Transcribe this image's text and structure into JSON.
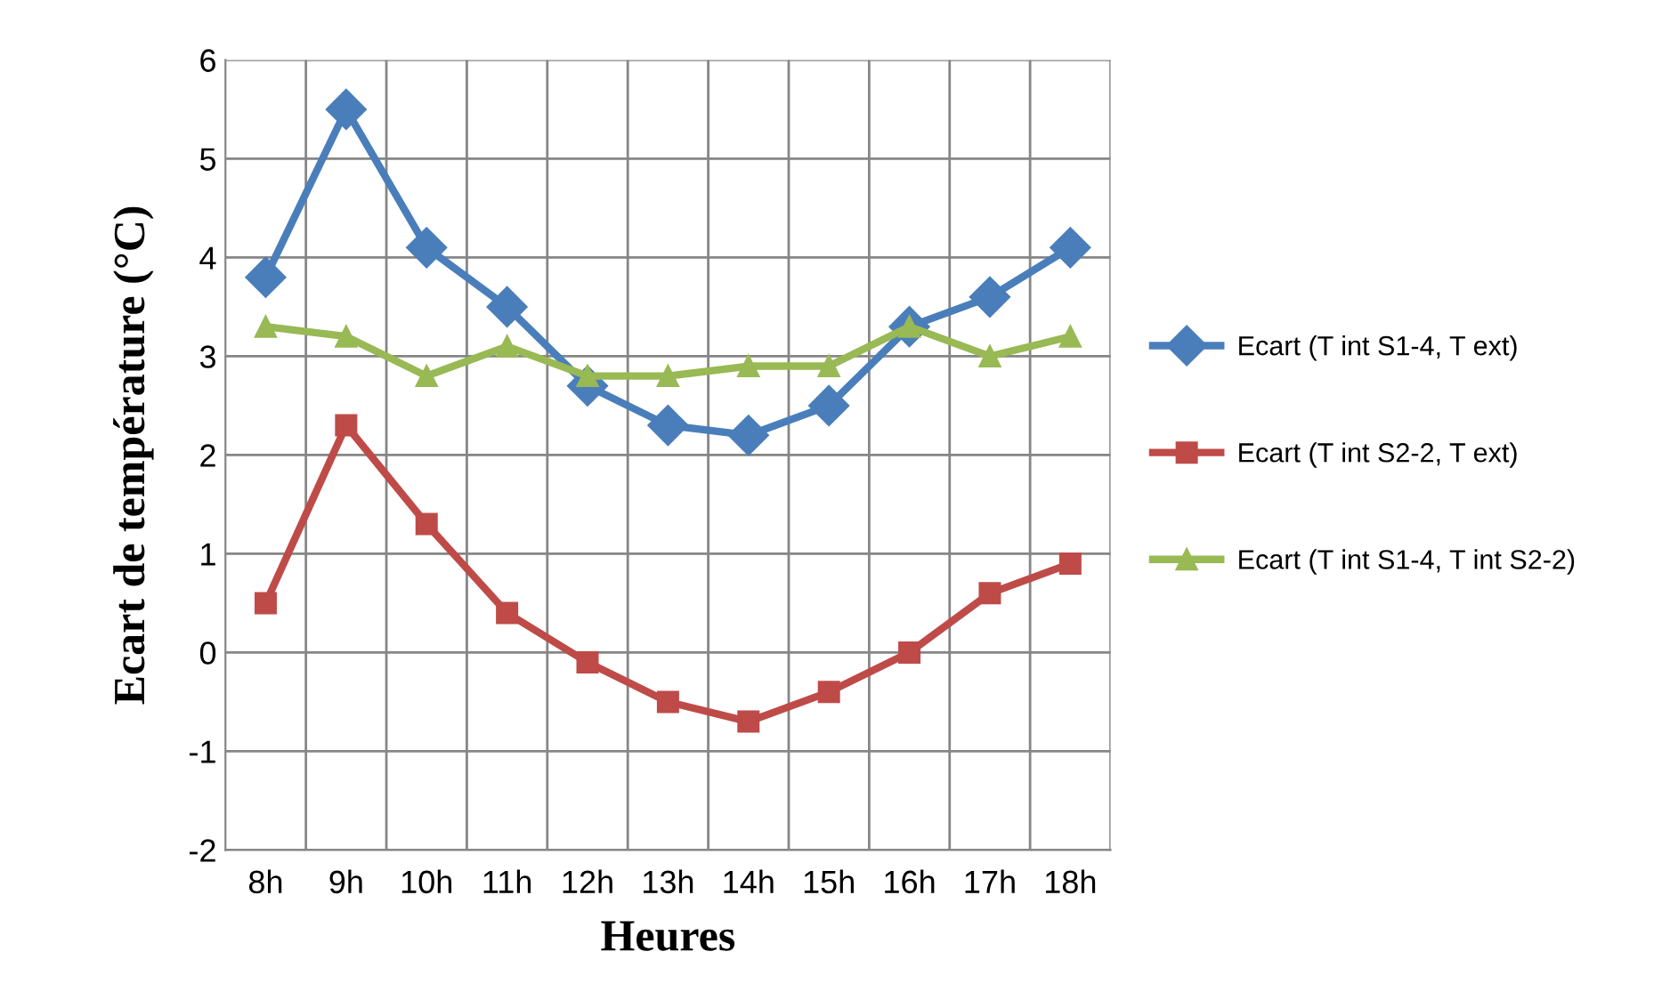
{
  "chart_data": {
    "type": "line",
    "xlabel": "Heures",
    "ylabel": "Ecart de température (°C)",
    "categories": [
      "8h",
      "9h",
      "10h",
      "11h",
      "12h",
      "13h",
      "14h",
      "15h",
      "16h",
      "17h",
      "18h"
    ],
    "series": [
      {
        "name": "Ecart (T int S1-4, T ext)",
        "color": "#4a7ebb",
        "marker": "diamond",
        "values": [
          3.8,
          5.5,
          4.1,
          3.5,
          2.7,
          2.3,
          2.2,
          2.5,
          3.3,
          3.6,
          4.1
        ]
      },
      {
        "name": "Ecart (T int S2-2, T ext)",
        "color": "#be4b48",
        "marker": "square",
        "values": [
          0.5,
          2.3,
          1.3,
          0.4,
          -0.1,
          -0.5,
          -0.7,
          -0.4,
          0.0,
          0.6,
          0.9
        ]
      },
      {
        "name": "Ecart (T int S1-4, T int S2-2)",
        "color": "#98b954",
        "marker": "triangle",
        "values": [
          3.3,
          3.2,
          2.8,
          3.1,
          2.8,
          2.8,
          2.9,
          2.9,
          3.3,
          3.0,
          3.2
        ]
      }
    ],
    "ylim": [
      -2,
      6
    ],
    "yticks": [
      -2,
      -1,
      0,
      1,
      2,
      3,
      4,
      5,
      6
    ],
    "grid": true,
    "legend": "right"
  }
}
